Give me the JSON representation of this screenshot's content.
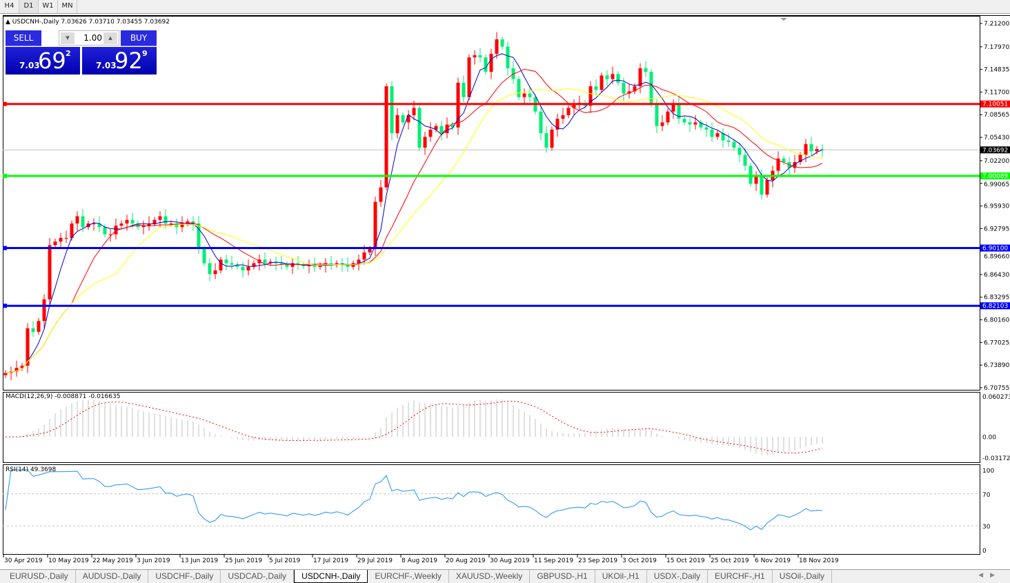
{
  "toolbar": {
    "timeframes": [
      "H4",
      "D1",
      "W1",
      "MN"
    ],
    "active": "D1"
  },
  "header": {
    "symbol_info": "USDCNH-,Daily  7.03626 7.03710 7.03455 7.03692"
  },
  "trade_panel": {
    "sell_label": "SELL",
    "buy_label": "BUY",
    "lot": "1.00",
    "sell_big": "7.03",
    "sell_pips": "69",
    "sell_frac": "2",
    "buy_big": "7.03",
    "buy_pips": "92",
    "buy_frac": "9",
    "color": "#0000c0"
  },
  "macd": {
    "label": "MACD(12,26,9) -0.008871 -0.016635",
    "axis": [
      "0.060273",
      "0.00",
      "-0.031725"
    ],
    "range": [
      -0.031725,
      0.060273
    ]
  },
  "rsi": {
    "label": "RSI(14) 49.3698",
    "axis": [
      "100",
      "70",
      "30",
      "0"
    ],
    "levels": [
      70,
      30
    ]
  },
  "tabs": [
    "EURUSD-,Daily",
    "AUDUSD-,Daily",
    "USDCHF-,Daily",
    "USDCAD-,Daily",
    "USDCNH-,Daily",
    "EURCHF-,Weekly",
    "XAUUSD-,Weekly",
    "GBPUSD-,H1",
    "UKOil-,H1",
    "USDX-,Daily",
    "EURCHF-,H1",
    "USOil-,Daily"
  ],
  "active_tab": "USDCNH-,Daily",
  "chart_data": {
    "type": "candlestick",
    "symbol": "USDCNH-",
    "timeframe": "Daily",
    "ylim": [
      6.70755,
      7.212
    ],
    "yticks": [
      "7.21200",
      "7.17970",
      "7.14835",
      "7.11700",
      "7.08565",
      "7.05430",
      "7.02200",
      "6.99065",
      "6.95930",
      "6.92795",
      "6.89660",
      "6.86430",
      "6.83295",
      "6.80160",
      "6.77025",
      "6.73890",
      "6.70755"
    ],
    "xticks": [
      "30 Apr 2019",
      "10 May 2019",
      "22 May 2019",
      "3 Jun 2019",
      "13 Jun 2019",
      "25 Jun 2019",
      "5 Jul 2019",
      "17 Jul 2019",
      "29 Jul 2019",
      "8 Aug 2019",
      "20 Aug 2019",
      "30 Aug 2019",
      "11 Sep 2019",
      "23 Sep 2019",
      "3 Oct 2019",
      "15 Oct 2019",
      "25 Oct 2019",
      "6 Nov 2019",
      "18 Nov 2019"
    ],
    "closes": [
      6.728,
      6.73,
      6.735,
      6.738,
      6.79,
      6.785,
      6.8,
      6.83,
      6.905,
      6.91,
      6.915,
      6.915,
      6.935,
      6.945,
      6.93,
      6.935,
      6.935,
      6.93,
      6.92,
      6.92,
      6.932,
      6.935,
      6.94,
      6.935,
      6.93,
      6.932,
      6.935,
      6.94,
      6.945,
      6.935,
      6.935,
      6.93,
      6.935,
      6.938,
      6.935,
      6.9,
      6.88,
      6.865,
      6.87,
      6.885,
      6.88,
      6.878,
      6.875,
      6.87,
      6.875,
      6.88,
      6.885,
      6.88,
      6.882,
      6.88,
      6.878,
      6.875,
      6.88,
      6.878,
      6.876,
      6.878,
      6.875,
      6.877,
      6.88,
      6.878,
      6.88,
      6.878,
      6.875,
      6.88,
      6.885,
      6.895,
      6.9,
      6.965,
      6.985,
      7.125,
      7.06,
      7.085,
      7.075,
      7.085,
      7.095,
      7.04,
      7.055,
      7.065,
      7.07,
      7.06,
      7.072,
      7.068,
      7.13,
      7.11,
      7.165,
      7.168,
      7.165,
      7.145,
      7.17,
      7.19,
      7.18,
      7.15,
      7.135,
      7.11,
      7.115,
      7.11,
      7.09,
      7.06,
      7.04,
      7.065,
      7.08,
      7.085,
      7.095,
      7.1,
      7.102,
      7.098,
      7.125,
      7.12,
      7.14,
      7.135,
      7.142,
      7.13,
      7.115,
      7.118,
      7.125,
      7.15,
      7.145,
      7.1,
      7.07,
      7.075,
      7.09,
      7.1,
      7.08,
      7.075,
      7.072,
      7.075,
      7.068,
      7.065,
      7.055,
      7.06,
      7.05,
      7.048,
      7.04,
      7.03,
      7.015,
      6.99,
      7.0,
      6.975,
      6.995,
      7.008,
      7.025,
      7.02,
      7.012,
      7.02,
      7.03,
      7.045,
      7.035,
      7.038,
      7.03692
    ],
    "bull_color": "#ff0000",
    "bear_color": "#00ee76",
    "ma_colors": [
      "#0000cc",
      "#ff0000",
      "#ffff00"
    ],
    "hlines": [
      {
        "price": "7.10051",
        "color": "#ff0000"
      },
      {
        "price": "7.00089",
        "color": "#00ff00"
      },
      {
        "price": "6.90100",
        "color": "#0000ff"
      },
      {
        "price": "6.82103",
        "color": "#0000ff"
      }
    ],
    "current_price": "7.03692"
  }
}
